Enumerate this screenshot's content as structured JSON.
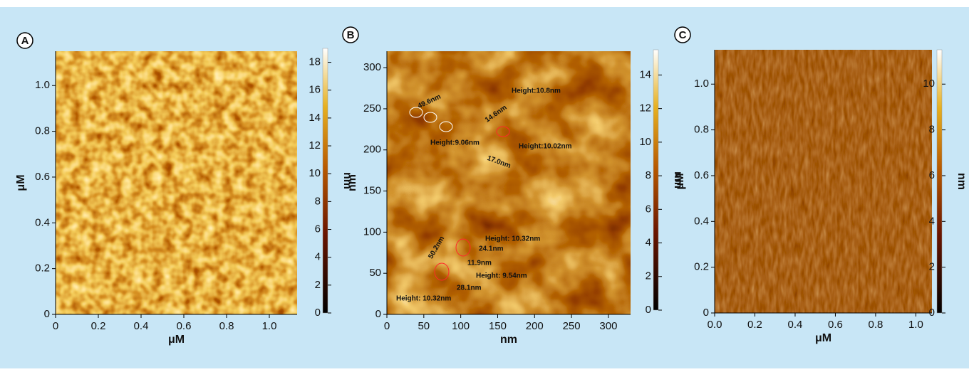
{
  "chart_data": [
    {
      "type": "image",
      "panel": "A",
      "xlabel": "μM",
      "ylabel": "μM",
      "xlim": [
        0,
        1.13
      ],
      "ylim": [
        0,
        1.15
      ],
      "xticks": [
        0,
        0.2,
        0.4,
        0.6,
        0.8,
        {
          "value": 1,
          "label": "1.0"
        }
      ],
      "yticks": [
        0,
        0.2,
        0.4,
        0.6,
        0.8,
        {
          "value": 1,
          "label": "1.0"
        }
      ],
      "colorbar": {
        "label": "nm",
        "lim": [
          0,
          19
        ],
        "ticks": [
          0,
          2,
          4,
          6,
          8,
          10,
          12,
          14,
          16,
          18
        ]
      }
    },
    {
      "type": "image",
      "panel": "B",
      "xlabel": "nm",
      "ylabel": "nm",
      "xlim": [
        0,
        330
      ],
      "ylim": [
        0,
        320
      ],
      "xticks": [
        0,
        50,
        100,
        150,
        200,
        250,
        300
      ],
      "yticks": [
        0,
        50,
        100,
        150,
        200,
        250,
        300
      ],
      "colorbar": {
        "label": "nm",
        "lim": [
          0,
          15.5
        ],
        "ticks": [
          0,
          2,
          4,
          6,
          8,
          10,
          12,
          14
        ]
      },
      "annotations": [
        {
          "text": "49.6nm",
          "color": "#ffffff"
        },
        {
          "text": "Height:10.8nm",
          "color": "#ffffff"
        },
        {
          "text": "14.6nm",
          "color": "#ff2a2a"
        },
        {
          "text": "Height:9.06nm",
          "color": "#ffffff"
        },
        {
          "text": "Height:10.02nm",
          "color": "#ffffff"
        },
        {
          "text": "17.0nm",
          "color": "#ff2a2a"
        },
        {
          "text": "Height: 10.32nm",
          "color": "#ff2a2a"
        },
        {
          "text": "24.1nm",
          "color": "#ffffff"
        },
        {
          "text": "50.2nm",
          "color": "#ff2a2a"
        },
        {
          "text": "11.9nm",
          "color": "#ffffff"
        },
        {
          "text": "Height: 9.54nm",
          "color": "#ff2a2a"
        },
        {
          "text": "28.1nm",
          "color": "#ffffff"
        },
        {
          "text": "Height: 10.32nm",
          "color": "#ff2a2a"
        }
      ]
    },
    {
      "type": "image",
      "panel": "C",
      "xlabel": "μM",
      "ylabel": "μM",
      "xlim": [
        0,
        1.08
      ],
      "ylim": [
        0,
        1.15
      ],
      "xticks": [
        {
          "value": 0,
          "label": "0.0"
        },
        0.2,
        0.4,
        0.6,
        0.8,
        {
          "value": 1,
          "label": "1.0"
        }
      ],
      "yticks": [
        0,
        0.2,
        0.4,
        0.6,
        0.8,
        {
          "value": 1,
          "label": "1.0"
        }
      ],
      "colorbar": {
        "label": "nm",
        "lim": [
          0,
          11.5
        ],
        "ticks": [
          0,
          2,
          4,
          6,
          8,
          10
        ]
      }
    }
  ]
}
